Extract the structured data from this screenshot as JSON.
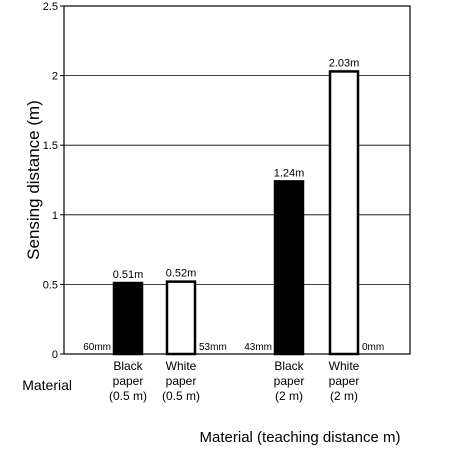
{
  "chart_data": {
    "type": "bar",
    "title": "",
    "xlabel": "Material (teaching distance m)",
    "ylabel": "Sensing distance (m)",
    "left_label": "Material",
    "ylim": [
      0,
      2.5
    ],
    "yticks": [
      {
        "value": 0,
        "label": "0"
      },
      {
        "value": 0.5,
        "label": "0.5"
      },
      {
        "value": 1,
        "label": "1"
      },
      {
        "value": 1.5,
        "label": "1.5"
      },
      {
        "value": 2,
        "label": "2"
      },
      {
        "value": 2.5,
        "label": "2.5"
      }
    ],
    "grid": true,
    "bars": [
      {
        "category": [
          "Black",
          "paper",
          "(0.5 m)"
        ],
        "value": 0.51,
        "label": "0.51m",
        "bottom_label": "60mm",
        "bottom_label_side": "left",
        "fill": "#000000"
      },
      {
        "category": [
          "White",
          "paper",
          "(0.5 m)"
        ],
        "value": 0.52,
        "label": "0.52m",
        "bottom_label": "53mm",
        "bottom_label_side": "right",
        "fill": "#ffffff"
      },
      {
        "category": [
          "Black",
          "paper",
          "(2 m)"
        ],
        "value": 1.24,
        "label": "1.24m",
        "bottom_label": "43mm",
        "bottom_label_side": "left",
        "fill": "#000000"
      },
      {
        "category": [
          "White",
          "paper",
          "(2 m)"
        ],
        "value": 2.03,
        "label": "2.03m",
        "bottom_label": "0mm",
        "bottom_label_side": "right",
        "fill": "#ffffff"
      }
    ]
  }
}
